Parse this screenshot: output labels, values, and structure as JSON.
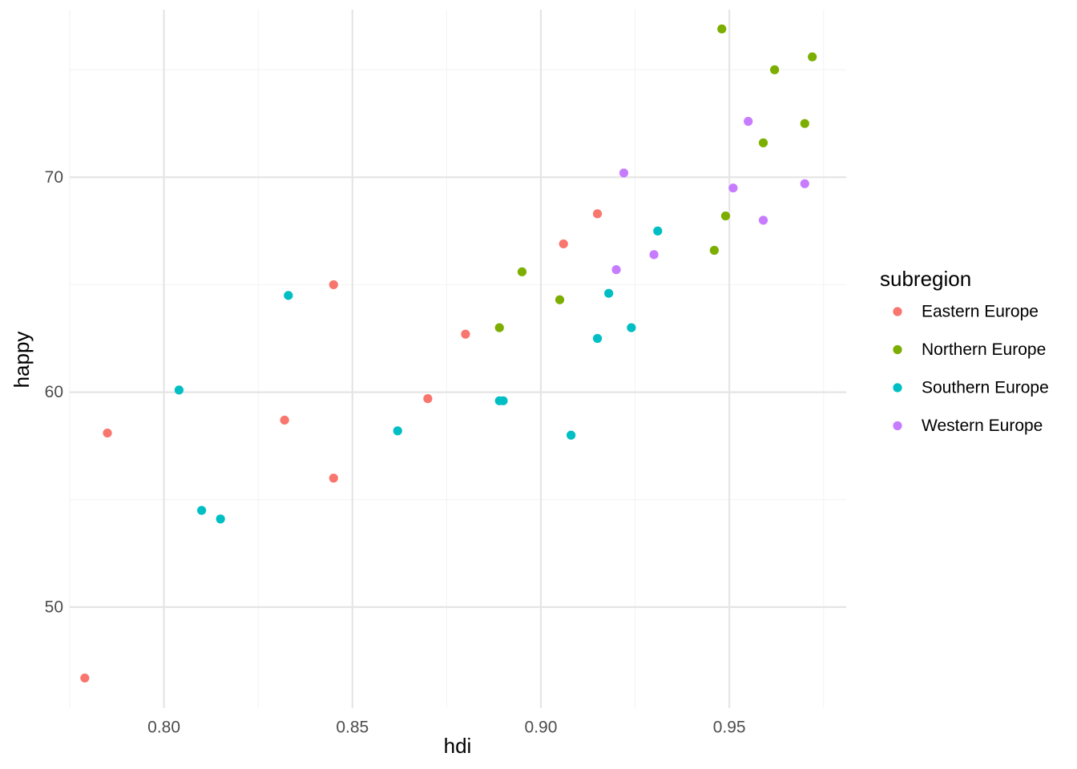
{
  "chart_data": {
    "type": "scatter",
    "title": "",
    "xlabel": "hdi",
    "ylabel": "happy",
    "xlim": [
      0.775,
      0.981
    ],
    "ylim": [
      45.3,
      77.8
    ],
    "x_ticks": [
      0.8,
      0.85,
      0.9,
      0.95
    ],
    "x_tick_labels": [
      "0.80",
      "0.85",
      "0.90",
      "0.95"
    ],
    "y_ticks": [
      50,
      60,
      70
    ],
    "y_tick_labels": [
      "50",
      "60",
      "70"
    ],
    "grid": true,
    "legend_title": "subregion",
    "legend_position": "right",
    "series": [
      {
        "name": "Eastern Europe",
        "color": "#F8766D",
        "points": [
          [
            0.779,
            46.7
          ],
          [
            0.785,
            58.1
          ],
          [
            0.832,
            58.7
          ],
          [
            0.845,
            56.0
          ],
          [
            0.845,
            65.0
          ],
          [
            0.87,
            59.7
          ],
          [
            0.88,
            62.7
          ],
          [
            0.906,
            66.9
          ],
          [
            0.915,
            68.3
          ]
        ]
      },
      {
        "name": "Northern Europe",
        "color": "#7CAE00",
        "points": [
          [
            0.889,
            63.0
          ],
          [
            0.895,
            65.6
          ],
          [
            0.905,
            64.3
          ],
          [
            0.946,
            66.6
          ],
          [
            0.948,
            76.9
          ],
          [
            0.949,
            68.2
          ],
          [
            0.959,
            71.6
          ],
          [
            0.962,
            75.0
          ],
          [
            0.97,
            72.5
          ],
          [
            0.972,
            75.6
          ]
        ]
      },
      {
        "name": "Southern Europe",
        "color": "#00BFC4",
        "points": [
          [
            0.804,
            60.1
          ],
          [
            0.81,
            54.5
          ],
          [
            0.815,
            54.1
          ],
          [
            0.833,
            64.5
          ],
          [
            0.862,
            58.2
          ],
          [
            0.889,
            59.6
          ],
          [
            0.89,
            59.6
          ],
          [
            0.908,
            58.0
          ],
          [
            0.915,
            62.5
          ],
          [
            0.918,
            64.6
          ],
          [
            0.924,
            63.0
          ],
          [
            0.931,
            67.5
          ]
        ]
      },
      {
        "name": "Western Europe",
        "color": "#C77CFF",
        "points": [
          [
            0.92,
            65.7
          ],
          [
            0.922,
            70.2
          ],
          [
            0.93,
            66.4
          ],
          [
            0.951,
            69.5
          ],
          [
            0.955,
            72.6
          ],
          [
            0.959,
            68.0
          ],
          [
            0.97,
            69.7
          ]
        ]
      }
    ]
  }
}
